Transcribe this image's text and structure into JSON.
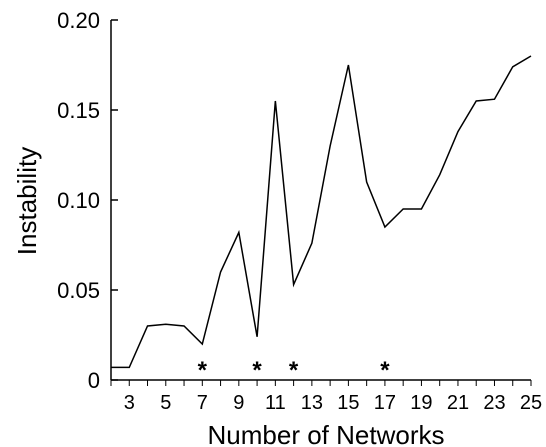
{
  "chart_data": {
    "type": "line",
    "title": "",
    "xlabel": "Number of Networks",
    "ylabel": "Instability",
    "xlim": [
      2,
      25
    ],
    "ylim": [
      0,
      0.2
    ],
    "x_ticks": [
      3,
      5,
      7,
      9,
      11,
      13,
      15,
      17,
      19,
      21,
      23,
      25
    ],
    "y_ticks": [
      "0",
      "0.05",
      "0.10",
      "0.15",
      "0.20"
    ],
    "grid": false,
    "legend": "none",
    "line_color": "#000000",
    "series": [
      {
        "x": [
          2,
          3,
          4,
          5,
          6,
          7,
          8,
          9,
          10,
          11,
          12,
          13,
          14,
          15,
          16,
          17,
          18,
          19,
          20,
          21,
          22,
          23,
          24,
          25
        ],
        "values": [
          0.007,
          0.007,
          0.03,
          0.031,
          0.03,
          0.02,
          0.06,
          0.082,
          0.024,
          0.155,
          0.053,
          0.076,
          0.13,
          0.175,
          0.11,
          0.085,
          0.095,
          0.095,
          0.114,
          0.138,
          0.155,
          0.156,
          0.174,
          0.18
        ]
      }
    ],
    "annotations": [
      {
        "x": 7,
        "text": "*"
      },
      {
        "x": 10,
        "text": "*"
      },
      {
        "x": 12,
        "text": "*"
      },
      {
        "x": 17,
        "text": "*"
      }
    ]
  }
}
